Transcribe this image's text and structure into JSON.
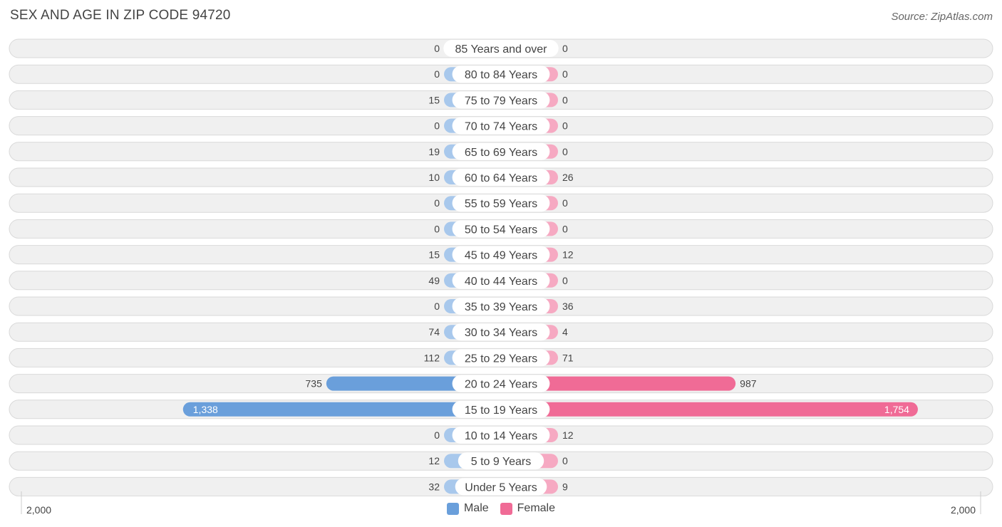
{
  "title": "SEX AND AGE IN ZIP CODE 94720",
  "source": "Source: ZipAtlas.com",
  "colors": {
    "male": "#a8c8ec",
    "male_strong": "#6a9fdb",
    "female": "#f6a9c2",
    "female_strong": "#f06b96"
  },
  "legend": {
    "male": "Male",
    "female": "Female"
  },
  "axis": {
    "left_label": "2,000",
    "right_label": "2,000"
  },
  "chart_data": {
    "type": "bar",
    "orientation": "horizontal-diverging",
    "title": "SEX AND AGE IN ZIP CODE 94720",
    "xlim": [
      -2000,
      2000
    ],
    "categories": [
      "85 Years and over",
      "80 to 84 Years",
      "75 to 79 Years",
      "70 to 74 Years",
      "65 to 69 Years",
      "60 to 64 Years",
      "55 to 59 Years",
      "50 to 54 Years",
      "45 to 49 Years",
      "40 to 44 Years",
      "35 to 39 Years",
      "30 to 34 Years",
      "25 to 29 Years",
      "20 to 24 Years",
      "15 to 19 Years",
      "10 to 14 Years",
      "5 to 9 Years",
      "Under 5 Years"
    ],
    "series": [
      {
        "name": "Male",
        "values": [
          0,
          0,
          15,
          0,
          19,
          10,
          0,
          0,
          15,
          49,
          0,
          74,
          112,
          735,
          1338,
          0,
          12,
          32
        ],
        "labels": [
          "0",
          "0",
          "15",
          "0",
          "19",
          "10",
          "0",
          "0",
          "15",
          "49",
          "0",
          "74",
          "112",
          "735",
          "1,338",
          "0",
          "12",
          "32"
        ]
      },
      {
        "name": "Female",
        "values": [
          0,
          0,
          0,
          0,
          0,
          26,
          0,
          0,
          12,
          0,
          36,
          4,
          71,
          987,
          1754,
          12,
          0,
          9
        ],
        "labels": [
          "0",
          "0",
          "0",
          "0",
          "0",
          "26",
          "0",
          "0",
          "12",
          "0",
          "36",
          "4",
          "71",
          "987",
          "1,754",
          "12",
          "0",
          "9"
        ]
      }
    ],
    "legend_position": "bottom-center",
    "grid": false
  }
}
